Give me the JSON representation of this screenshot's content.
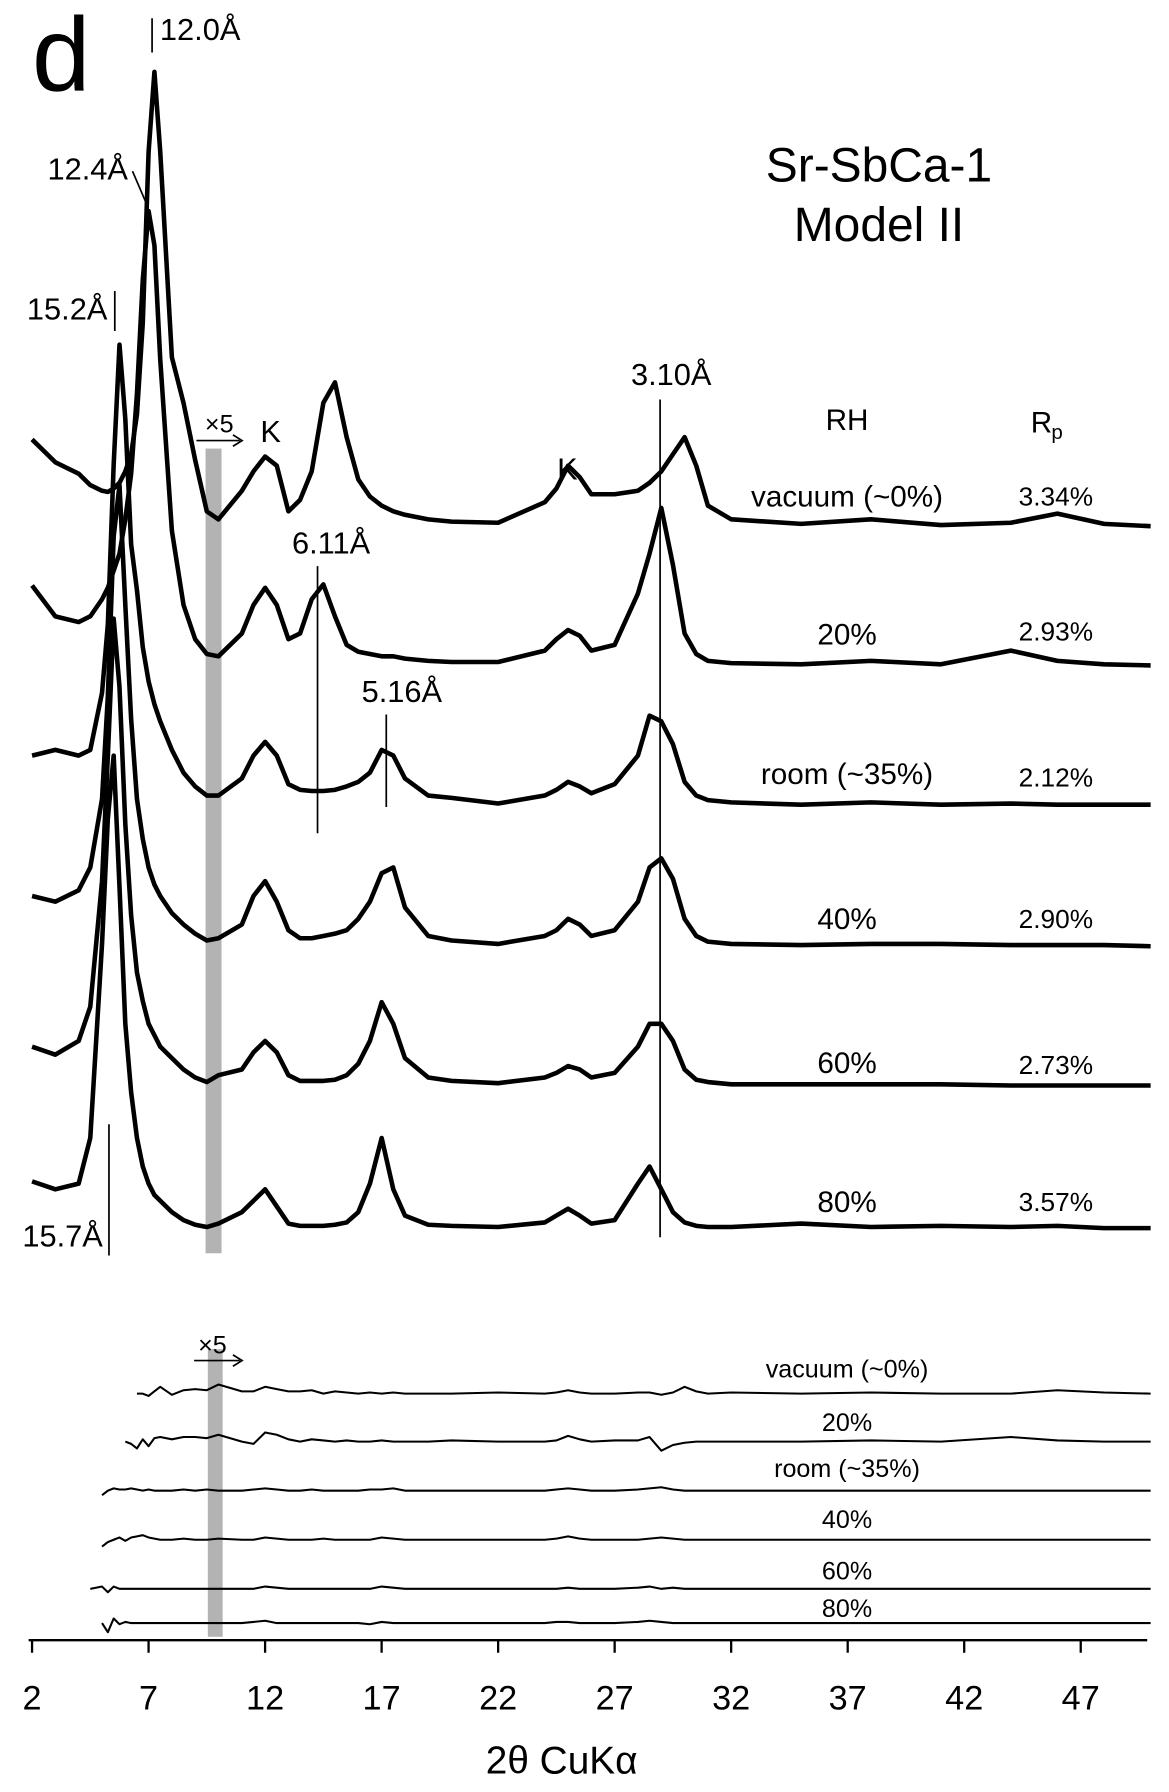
{
  "chart_data": {
    "type": "line",
    "panel_label": "d",
    "title": "Sr-SbCa-1",
    "subtitle": "Model II",
    "x_label": "2θ CuKα",
    "xlim": [
      2,
      50
    ],
    "xticks": [
      2,
      7,
      12,
      17,
      22,
      27,
      32,
      37,
      42,
      47
    ],
    "rh_header": "RH",
    "rp_header": "R",
    "rp_header_subscript": "p",
    "zoom_label": "×5",
    "x": [
      2,
      3,
      4,
      4.5,
      5,
      5.25,
      5.5,
      5.75,
      6,
      6.25,
      6.5,
      6.75,
      7,
      7.25,
      7.5,
      8,
      8.5,
      9,
      9.5,
      10,
      11,
      11.5,
      12,
      12.5,
      13,
      13.5,
      14,
      14.5,
      15,
      15.5,
      16,
      16.5,
      17,
      17.5,
      18,
      19,
      20,
      22,
      24,
      24.5,
      25,
      25.5,
      26,
      27,
      28,
      28.5,
      29,
      29.5,
      30,
      30.5,
      31,
      32,
      35,
      38,
      41,
      44,
      46,
      48,
      50
    ],
    "series": [
      {
        "name": "vacuum (~0%)",
        "color": "#000000",
        "rp": 3.34,
        "rp_label": "3.34%",
        "values": [
          78,
          58,
          48,
          38,
          33,
          32,
          35,
          40,
          50,
          65,
          100,
          180,
          330,
          400,
          330,
          150,
          110,
          60,
          15,
          8,
          33,
          50,
          63,
          55,
          15,
          25,
          50,
          110,
          128,
          80,
          43,
          28,
          20,
          15,
          12,
          8,
          6,
          5,
          23,
          35,
          55,
          45,
          30,
          30,
          33,
          40,
          50,
          65,
          80,
          55,
          20,
          8,
          4,
          8,
          3,
          5,
          13,
          4,
          2
        ]
      },
      {
        "name": "20%",
        "color": "#000000",
        "rp": 2.93,
        "rp_label": "2.93%",
        "values": [
          72,
          45,
          40,
          45,
          60,
          70,
          85,
          100,
          130,
          170,
          240,
          340,
          400,
          370,
          270,
          120,
          55,
          25,
          12,
          10,
          30,
          55,
          70,
          55,
          25,
          30,
          60,
          73,
          45,
          20,
          14,
          12,
          10,
          10,
          8,
          6,
          5,
          5,
          15,
          25,
          33,
          28,
          15,
          20,
          65,
          100,
          140,
          90,
          30,
          12,
          6,
          4,
          3,
          6,
          3,
          15,
          6,
          3,
          2
        ]
      },
      {
        "name": "room (~35%)",
        "color": "#000000",
        "rp": 2.12,
        "rp_label": "2.12%",
        "values": [
          45,
          50,
          45,
          50,
          100,
          160,
          300,
          405,
          340,
          230,
          190,
          140,
          110,
          90,
          75,
          50,
          30,
          18,
          10,
          10,
          25,
          45,
          57,
          45,
          20,
          15,
          14,
          14,
          15,
          18,
          22,
          30,
          50,
          45,
          25,
          10,
          8,
          3,
          10,
          15,
          22,
          18,
          12,
          20,
          45,
          80,
          75,
          55,
          22,
          10,
          6,
          4,
          2,
          4,
          2,
          3,
          2,
          2,
          2
        ]
      },
      {
        "name": "40%",
        "color": "#000000",
        "rp": 2.9,
        "rp_label": "2.90%",
        "values": [
          45,
          40,
          50,
          70,
          130,
          220,
          360,
          405,
          300,
          200,
          130,
          95,
          70,
          55,
          45,
          30,
          20,
          12,
          6,
          8,
          20,
          45,
          58,
          40,
          15,
          8,
          8,
          10,
          12,
          15,
          25,
          40,
          65,
          70,
          35,
          10,
          6,
          3,
          10,
          15,
          25,
          20,
          10,
          15,
          40,
          70,
          78,
          60,
          25,
          10,
          5,
          3,
          2,
          3,
          3,
          2,
          2,
          2,
          1
        ]
      },
      {
        "name": "60%",
        "color": "#000000",
        "rp": 2.73,
        "rp_label": "2.73%",
        "values": [
          35,
          28,
          40,
          70,
          180,
          290,
          410,
          350,
          230,
          150,
          100,
          75,
          55,
          45,
          35,
          25,
          15,
          8,
          4,
          10,
          15,
          30,
          40,
          30,
          10,
          5,
          5,
          5,
          6,
          10,
          20,
          40,
          74,
          55,
          25,
          8,
          5,
          3,
          8,
          12,
          18,
          15,
          8,
          12,
          35,
          55,
          55,
          40,
          15,
          6,
          4,
          2,
          2,
          2,
          2,
          1,
          1,
          1,
          1
        ]
      },
      {
        "name": "80%",
        "color": "#000000",
        "rp": 3.57,
        "rp_label": "3.57%",
        "values": [
          42,
          35,
          40,
          80,
          250,
          360,
          415,
          300,
          180,
          120,
          80,
          55,
          40,
          30,
          25,
          15,
          8,
          4,
          2,
          5,
          15,
          25,
          35,
          20,
          5,
          3,
          3,
          3,
          4,
          6,
          15,
          40,
          80,
          35,
          12,
          4,
          3,
          2,
          6,
          12,
          18,
          12,
          5,
          8,
          40,
          55,
          35,
          15,
          6,
          3,
          2,
          2,
          5,
          2,
          3,
          2,
          3,
          1,
          1
        ]
      }
    ],
    "difference_series": [
      {
        "name": "vacuum (~0%)",
        "color": "#000000",
        "values": [
          null,
          null,
          null,
          null,
          null,
          null,
          null,
          null,
          null,
          null,
          0,
          0,
          -2,
          2,
          6,
          -1,
          3,
          4,
          3,
          8,
          2,
          2,
          6,
          4,
          2,
          2,
          3,
          0,
          2,
          1,
          0,
          1,
          0,
          1,
          0,
          0,
          0,
          1,
          0,
          1,
          3,
          1,
          0,
          0,
          1,
          1,
          -1,
          1,
          6,
          2,
          0,
          1,
          0,
          1,
          0,
          0,
          3,
          1,
          0
        ]
      },
      {
        "name": "20%",
        "color": "#000000",
        "values": [
          null,
          null,
          null,
          null,
          null,
          null,
          null,
          null,
          0,
          -2,
          -6,
          2,
          -4,
          3,
          4,
          2,
          4,
          4,
          3,
          6,
          0,
          -2,
          8,
          6,
          2,
          0,
          2,
          1,
          0,
          1,
          0,
          0,
          1,
          0,
          0,
          0,
          1,
          0,
          0,
          1,
          5,
          2,
          0,
          1,
          1,
          4,
          -8,
          -3,
          -1,
          0,
          0,
          0,
          0,
          1,
          0,
          4,
          1,
          0,
          0
        ]
      },
      {
        "name": "room (~35%)",
        "color": "#000000",
        "values": [
          null,
          null,
          null,
          null,
          -4,
          0,
          2,
          1,
          1,
          2,
          1,
          0,
          1,
          0,
          0,
          0,
          1,
          0,
          1,
          0,
          0,
          1,
          2,
          1,
          0,
          0,
          1,
          0,
          0,
          0,
          0,
          1,
          1,
          2,
          0,
          0,
          0,
          0,
          0,
          1,
          2,
          1,
          0,
          0,
          1,
          2,
          3,
          1,
          0,
          0,
          0,
          0,
          0,
          0,
          0,
          0,
          0,
          0,
          0
        ]
      },
      {
        "name": "40%",
        "color": "#000000",
        "values": [
          null,
          null,
          null,
          null,
          -6,
          -2,
          0,
          2,
          -1,
          2,
          3,
          4,
          2,
          1,
          0,
          0,
          1,
          0,
          0,
          1,
          0,
          0,
          2,
          1,
          0,
          0,
          0,
          1,
          0,
          0,
          0,
          0,
          2,
          1,
          0,
          0,
          0,
          0,
          0,
          1,
          3,
          1,
          0,
          0,
          0,
          1,
          2,
          1,
          0,
          0,
          0,
          0,
          0,
          0,
          0,
          0,
          0,
          0,
          0
        ]
      },
      {
        "name": "60%",
        "color": "#000000",
        "values": [
          null,
          null,
          null,
          0,
          2,
          -3,
          2,
          0,
          0,
          0,
          0,
          0,
          0,
          0,
          0,
          0,
          0,
          0,
          0,
          0,
          0,
          0,
          2,
          1,
          0,
          0,
          0,
          0,
          0,
          0,
          0,
          0,
          2,
          1,
          0,
          0,
          0,
          0,
          0,
          0,
          1,
          0,
          0,
          0,
          1,
          2,
          0,
          1,
          0,
          0,
          0,
          0,
          0,
          0,
          0,
          0,
          0,
          0,
          0
        ]
      },
      {
        "name": "80%",
        "color": "#000000",
        "values": [
          null,
          null,
          null,
          null,
          0,
          -8,
          4,
          -1,
          1,
          0,
          0,
          0,
          0,
          0,
          0,
          0,
          0,
          0,
          0,
          0,
          0,
          1,
          2,
          0,
          0,
          0,
          0,
          0,
          0,
          0,
          0,
          -1,
          1,
          0,
          0,
          0,
          0,
          0,
          0,
          1,
          1,
          0,
          0,
          0,
          1,
          2,
          1,
          0,
          0,
          0,
          0,
          0,
          0,
          0,
          0,
          0,
          0,
          0,
          0
        ]
      }
    ],
    "peak_labels": [
      "K",
      "K"
    ],
    "annotations": [
      {
        "text": "12.0Å",
        "x": 7.15
      },
      {
        "text": "12.4Å",
        "x": 6.9
      },
      {
        "text": "15.2Å",
        "x": 5.55
      },
      {
        "text": "6.11Å",
        "x": 14.25
      },
      {
        "text": "5.16Å",
        "x": 17.2
      },
      {
        "text": "3.10Å",
        "x": 28.95
      },
      {
        "text": "15.7Å",
        "x": 5.3
      }
    ]
  }
}
